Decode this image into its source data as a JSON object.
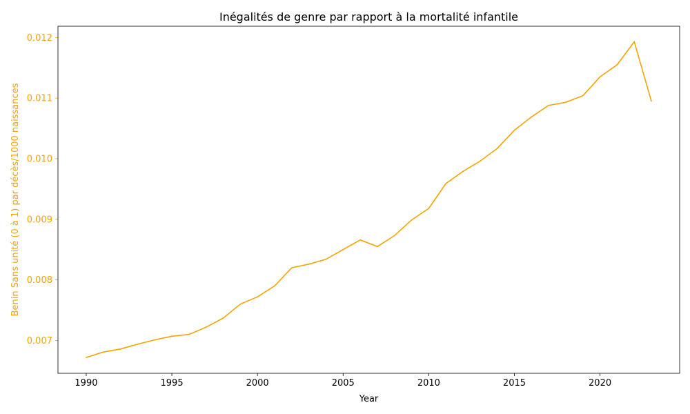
{
  "colors": {
    "series": "#f5a300",
    "axis": "#000000"
  },
  "chart_data": {
    "type": "line",
    "title": "Inégalités de genre par rapport à la mortalité infantile",
    "xlabel": "Year",
    "ylabel": "Benin Sans unité (0 à 1) par décès/1000 naissances",
    "xlim": [
      1988.35,
      2024.65
    ],
    "ylim": [
      0.006459,
      0.012186
    ],
    "xticks": [
      1990,
      1995,
      2000,
      2005,
      2010,
      2015,
      2020
    ],
    "xtick_labels": [
      "1990",
      "1995",
      "2000",
      "2005",
      "2010",
      "2015",
      "2020"
    ],
    "yticks": [
      0.007,
      0.008,
      0.009,
      0.01,
      0.011,
      0.012
    ],
    "ytick_labels": [
      "0.007",
      "0.008",
      "0.009",
      "0.010",
      "0.011",
      "0.012"
    ],
    "grid": false,
    "legend": "none",
    "x": [
      1990,
      1991,
      1992,
      1993,
      1994,
      1995,
      1996,
      1997,
      1998,
      1999,
      2000,
      2001,
      2002,
      2003,
      2004,
      2005,
      2006,
      2007,
      2008,
      2009,
      2010,
      2011,
      2012,
      2013,
      2014,
      2015,
      2016,
      2017,
      2018,
      2019,
      2020,
      2021,
      2022,
      2023
    ],
    "series": [
      {
        "values": [
          0.00672,
          0.00681,
          0.00686,
          0.00694,
          0.00701,
          0.00707,
          0.0071,
          0.00722,
          0.00737,
          0.0076,
          0.00772,
          0.0079,
          0.0082,
          0.00826,
          0.00834,
          0.0085,
          0.00866,
          0.00855,
          0.00873,
          0.00899,
          0.00918,
          0.00959,
          0.00979,
          0.00996,
          0.01017,
          0.01047,
          0.01069,
          0.01088,
          0.01093,
          0.01104,
          0.01135,
          0.01155,
          0.01193,
          0.01095
        ]
      }
    ]
  }
}
